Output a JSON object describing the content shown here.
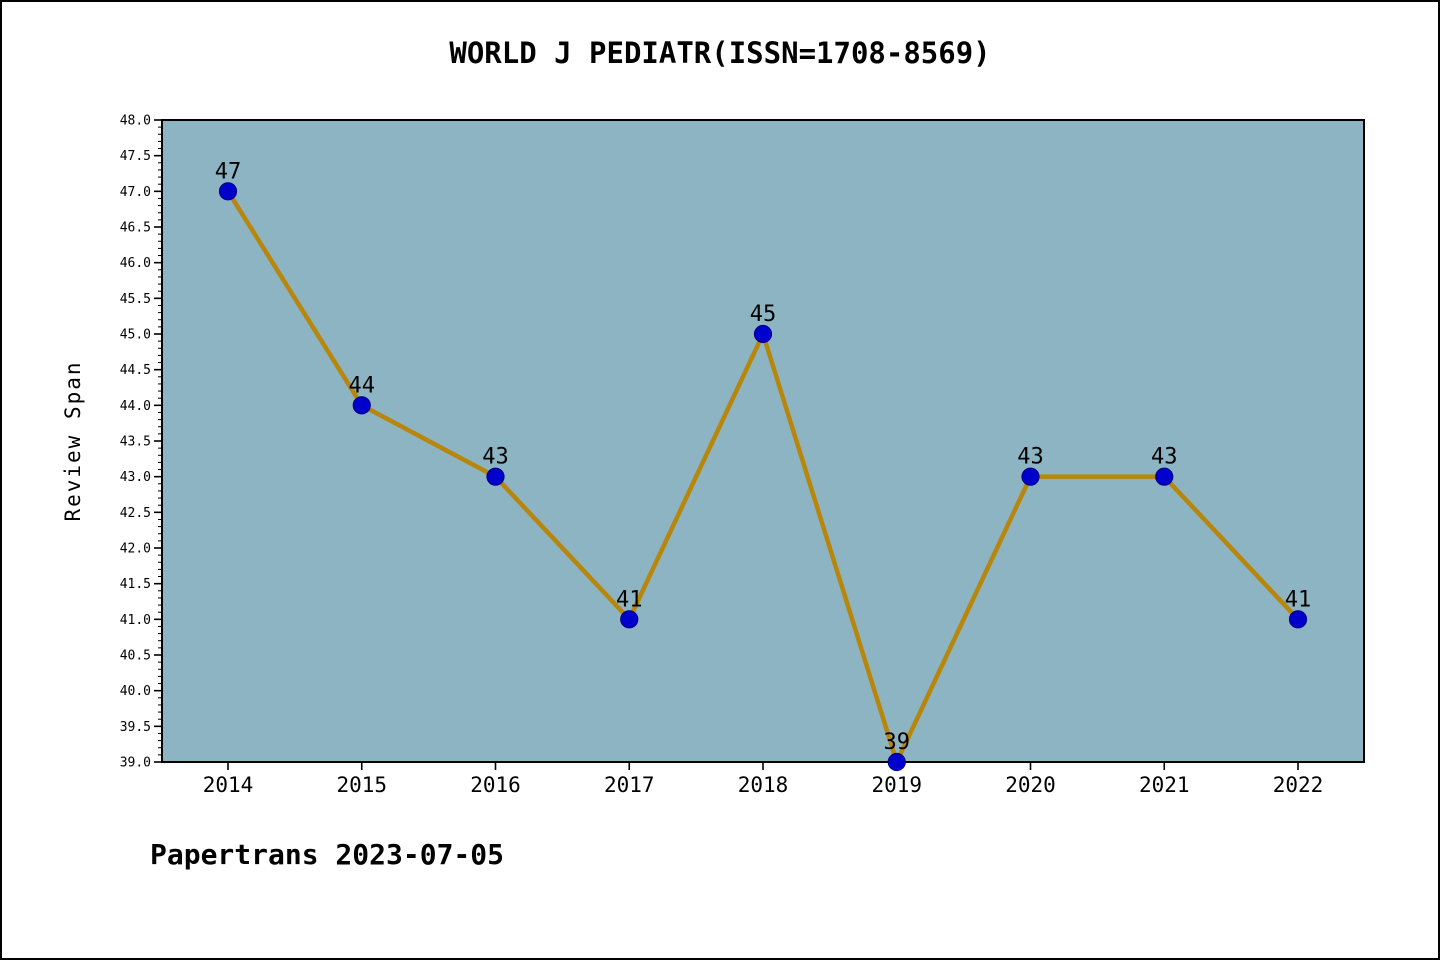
{
  "page": {
    "title": "WORLD J PEDIATR(ISSN=1708-8569)",
    "footer": "Papertrans 2023-07-05"
  },
  "chart_data": {
    "type": "line",
    "title": "WORLD J PEDIATR(ISSN=1708-8569)",
    "x": [
      "2014",
      "2015",
      "2016",
      "2017",
      "2018",
      "2019",
      "2020",
      "2021",
      "2022"
    ],
    "values": [
      47,
      44,
      43,
      41,
      45,
      39,
      43,
      43,
      41
    ],
    "point_labels": [
      "47",
      "44",
      "43",
      "41",
      "45",
      "39",
      "43",
      "43",
      "41"
    ],
    "xlabel": "",
    "ylabel": "Review Span",
    "ylim": [
      39.0,
      48.0
    ],
    "ytick_major": 0.5,
    "ytick_minor": 0.1,
    "grid": false,
    "legend": "none",
    "colors": {
      "figure_background": "#ffffff",
      "plot_background": "#8db4c3",
      "line": "#b8860b",
      "marker_fill": "#0000cd",
      "marker_edge": "#00008b",
      "axis": "#000000",
      "text": "#000000"
    }
  }
}
